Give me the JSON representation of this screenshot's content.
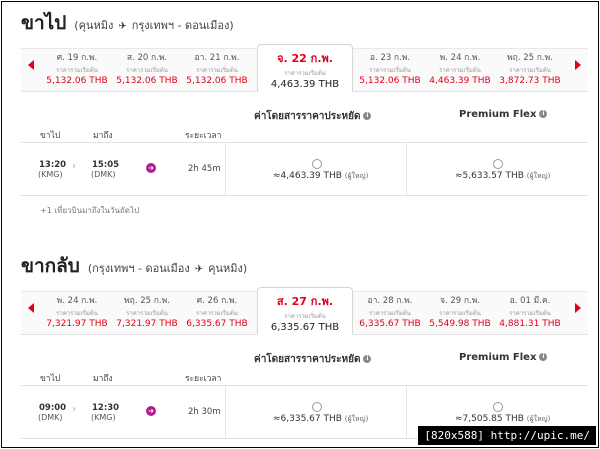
{
  "outbound": {
    "title": "ขาไป",
    "route_from": "(คุนหมิง",
    "route_to": "กรุงเทพฯ - ดอนเมือง)",
    "dates": [
      {
        "date": "ศ. 19 ก.พ.",
        "note": "ราคารวมเริ่มต้น",
        "price": "5,132.06 THB",
        "selected": false
      },
      {
        "date": "ส. 20 ก.พ.",
        "note": "ราคารวมเริ่มต้น",
        "price": "5,132.06 THB",
        "selected": false
      },
      {
        "date": "อา. 21 ก.พ.",
        "note": "ราคารวมเริ่มต้น",
        "price": "5,132.06 THB",
        "selected": false
      },
      {
        "date": "จ. 22 ก.พ.",
        "note": "ราคารวมเริ่มต้น",
        "price": "4,463.39 THB",
        "selected": true
      },
      {
        "date": "อ. 23 ก.พ.",
        "note": "ราคารวมเริ่มต้น",
        "price": "5,132.06 THB",
        "selected": false
      },
      {
        "date": "พ. 24 ก.พ.",
        "note": "ราคารวมเริ่มต้น",
        "price": "4,463.39 THB",
        "selected": false
      },
      {
        "date": "พฤ. 25 ก.พ.",
        "note": "ราคารวมเริ่มต้น",
        "price": "3,872.73 THB",
        "selected": false
      }
    ],
    "fare_saver": "ค่าโดยสารราคาประหยัด",
    "fare_flex": "Premium Flex",
    "col_depart": "ขาไป",
    "col_arrive": "มาถึง",
    "col_duration": "ระยะเวลา",
    "flight": {
      "dep_time": "13:20",
      "dep_code": "(KMG)",
      "arr_time": "15:05",
      "arr_code": "(DMK)",
      "duration": "2h 45m",
      "saver_price": "≈4,463.39 THB",
      "flex_price": "≈5,633.57 THB",
      "unit": "(ผู้ใหญ่)"
    },
    "note": "+1 เที่ยวบินมาถึงในวันถัดไป"
  },
  "inbound": {
    "title": "ขากลับ",
    "route_from": "(กรุงเทพฯ - ดอนเมือง",
    "route_to": "คุนหมิง)",
    "dates": [
      {
        "date": "พ. 24 ก.พ.",
        "note": "ราคารวมเริ่มต้น",
        "price": "7,321.97 THB",
        "selected": false
      },
      {
        "date": "พฤ. 25 ก.พ.",
        "note": "ราคารวมเริ่มต้น",
        "price": "7,321.97 THB",
        "selected": false
      },
      {
        "date": "ศ. 26 ก.พ.",
        "note": "ราคารวมเริ่มต้น",
        "price": "6,335.67 THB",
        "selected": false
      },
      {
        "date": "ส. 27 ก.พ.",
        "note": "ราคารวมเริ่มต้น",
        "price": "6,335.67 THB",
        "selected": true
      },
      {
        "date": "อา. 28 ก.พ.",
        "note": "ราคารวมเริ่มต้น",
        "price": "6,335.67 THB",
        "selected": false
      },
      {
        "date": "จ. 29 ก.พ.",
        "note": "ราคารวมเริ่มต้น",
        "price": "5,549.98 THB",
        "selected": false
      },
      {
        "date": "อ. 01 มี.ค.",
        "note": "ราคารวมเริ่มต้น",
        "price": "4,881.31 THB",
        "selected": false
      }
    ],
    "fare_saver": "ค่าโดยสารราคาประหยัด",
    "fare_flex": "Premium Flex",
    "col_depart": "ขาไป",
    "col_arrive": "มาถึง",
    "col_duration": "ระยะเวลา",
    "flight": {
      "dep_time": "09:00",
      "dep_code": "(DMK)",
      "arr_time": "12:30",
      "arr_code": "(KMG)",
      "duration": "2h 30m",
      "saver_price": "≈6,335.67 THB",
      "flex_price": "≈7,505.85 THB",
      "unit": "(ผู้ใหญ่)"
    }
  },
  "icons": {
    "plane": "airplane-icon",
    "info": "info-icon",
    "details": "arrow-right-circle-icon"
  },
  "colors": {
    "accent": "#e0001b",
    "details_icon": "#b01e8e"
  },
  "watermark": "[820x588] http://upic.me/"
}
